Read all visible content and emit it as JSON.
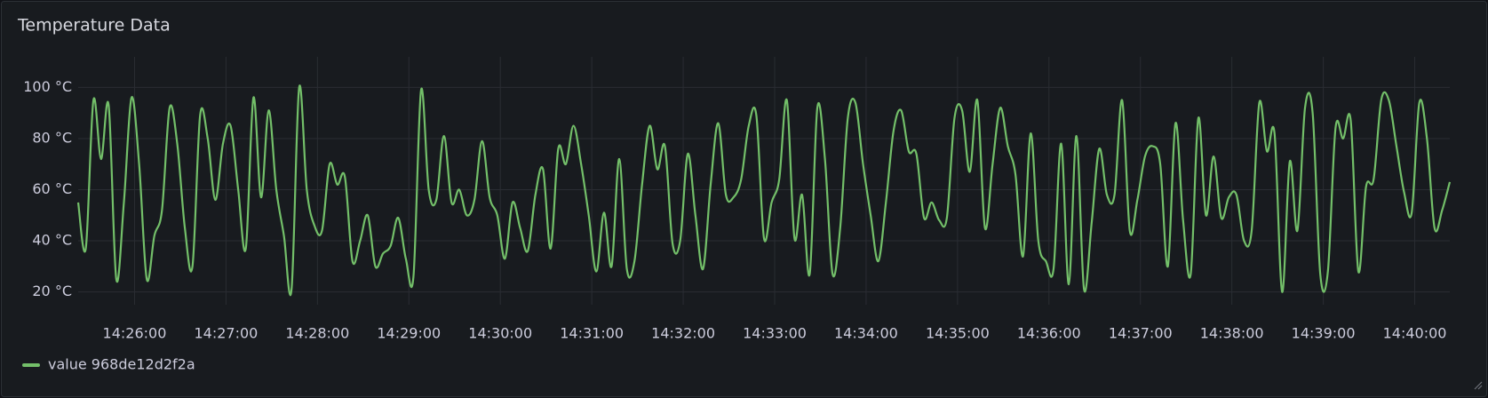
{
  "chart_data": {
    "type": "line",
    "title": "Temperature Data",
    "xlim": [
      "14:25:23",
      "14:40:23"
    ],
    "xticks": [
      "14:26:00",
      "14:27:00",
      "14:28:00",
      "14:29:00",
      "14:30:00",
      "14:31:00",
      "14:32:00",
      "14:33:00",
      "14:34:00",
      "14:35:00",
      "14:36:00",
      "14:37:00",
      "14:38:00",
      "14:39:00",
      "14:40:00"
    ],
    "ylim": [
      15,
      105
    ],
    "yticks": [
      {
        "value": 20,
        "label": "20 °C"
      },
      {
        "value": 40,
        "label": "40 °C"
      },
      {
        "value": 60,
        "label": "60 °C"
      },
      {
        "value": 80,
        "label": "80 °C"
      },
      {
        "value": 100,
        "label": "100 °C"
      }
    ],
    "grid": true,
    "legend": "bottom-left",
    "x": [
      "14:25:23",
      "14:25:28",
      "14:25:33",
      "14:25:38",
      "14:25:43",
      "14:25:48",
      "14:25:53",
      "14:25:58",
      "14:26:03",
      "14:26:08",
      "14:26:13",
      "14:26:18",
      "14:26:23",
      "14:26:28",
      "14:26:33",
      "14:26:38",
      "14:26:43",
      "14:26:48",
      "14:26:53",
      "14:26:58",
      "14:27:03",
      "14:27:08",
      "14:27:13",
      "14:27:18",
      "14:27:23",
      "14:27:28",
      "14:27:33",
      "14:27:38",
      "14:27:43",
      "14:27:48",
      "14:27:53",
      "14:27:58",
      "14:28:03",
      "14:28:08",
      "14:28:13",
      "14:28:18",
      "14:28:23",
      "14:28:28",
      "14:28:33",
      "14:28:38",
      "14:28:43",
      "14:28:48",
      "14:28:53",
      "14:28:58",
      "14:29:03",
      "14:29:08",
      "14:29:13",
      "14:29:18",
      "14:29:23",
      "14:29:28",
      "14:29:33",
      "14:29:38",
      "14:29:43",
      "14:29:48",
      "14:29:53",
      "14:29:58",
      "14:30:03",
      "14:30:08",
      "14:30:13",
      "14:30:18",
      "14:30:23",
      "14:30:28",
      "14:30:33",
      "14:30:38",
      "14:30:43",
      "14:30:48",
      "14:30:53",
      "14:30:58",
      "14:31:03",
      "14:31:08",
      "14:31:13",
      "14:31:18",
      "14:31:23",
      "14:31:28",
      "14:31:33",
      "14:31:38",
      "14:31:43",
      "14:31:48",
      "14:31:53",
      "14:31:58",
      "14:32:03",
      "14:32:08",
      "14:32:13",
      "14:32:18",
      "14:32:23",
      "14:32:28",
      "14:32:33",
      "14:32:38",
      "14:32:43",
      "14:32:48",
      "14:32:53",
      "14:32:58",
      "14:33:03",
      "14:33:08",
      "14:33:13",
      "14:33:18",
      "14:33:23",
      "14:33:28",
      "14:33:33",
      "14:33:38",
      "14:33:43",
      "14:33:48",
      "14:33:53",
      "14:33:58",
      "14:34:03",
      "14:34:08",
      "14:34:13",
      "14:34:18",
      "14:34:23",
      "14:34:28",
      "14:34:33",
      "14:34:38",
      "14:34:43",
      "14:34:48",
      "14:34:53",
      "14:34:58",
      "14:35:03",
      "14:35:08",
      "14:35:13",
      "14:35:18",
      "14:35:23",
      "14:35:28",
      "14:35:33",
      "14:35:38",
      "14:35:43",
      "14:35:48",
      "14:35:53",
      "14:35:58",
      "14:36:03",
      "14:36:08",
      "14:36:13",
      "14:36:18",
      "14:36:23",
      "14:36:28",
      "14:36:33",
      "14:36:38",
      "14:36:43",
      "14:36:48",
      "14:36:53",
      "14:36:58",
      "14:37:03",
      "14:37:08",
      "14:37:13",
      "14:37:18",
      "14:37:23",
      "14:37:28",
      "14:37:33",
      "14:37:38",
      "14:37:43",
      "14:37:48",
      "14:37:53",
      "14:37:58",
      "14:38:03",
      "14:38:08",
      "14:38:13",
      "14:38:18",
      "14:38:23",
      "14:38:28",
      "14:38:33",
      "14:38:38",
      "14:38:43",
      "14:38:48",
      "14:38:53",
      "14:38:58",
      "14:39:03",
      "14:39:08",
      "14:39:13",
      "14:39:18",
      "14:39:23",
      "14:39:28",
      "14:39:33",
      "14:39:38",
      "14:39:43",
      "14:39:48",
      "14:39:53",
      "14:39:58",
      "14:40:03",
      "14:40:08",
      "14:40:13",
      "14:40:18",
      "14:40:23"
    ],
    "series": [
      {
        "name": "value 968de12d2f2a",
        "color": "#73bf69",
        "values": [
          55,
          37,
          95,
          72,
          93,
          25,
          55,
          96,
          70,
          25,
          42,
          52,
          92,
          78,
          45,
          30,
          89,
          80,
          56,
          78,
          85,
          60,
          37,
          96,
          57,
          91,
          60,
          42,
          21,
          100,
          60,
          46,
          44,
          70,
          62,
          65,
          32,
          40,
          50,
          30,
          35,
          38,
          49,
          33,
          26,
          99,
          60,
          56,
          81,
          55,
          60,
          50,
          56,
          79,
          57,
          50,
          33,
          55,
          45,
          36,
          58,
          68,
          37,
          76,
          70,
          85,
          70,
          50,
          28,
          51,
          30,
          72,
          29,
          32,
          62,
          85,
          68,
          77,
          39,
          40,
          74,
          50,
          29,
          62,
          86,
          58,
          57,
          64,
          85,
          89,
          41,
          55,
          64,
          95,
          41,
          58,
          27,
          92,
          72,
          27,
          45,
          88,
          94,
          70,
          50,
          32,
          55,
          83,
          91,
          75,
          74,
          49,
          55,
          48,
          49,
          88,
          91,
          67,
          95,
          45,
          70,
          92,
          77,
          66,
          34,
          82,
          40,
          32,
          29,
          78,
          23,
          81,
          21,
          47,
          76,
          58,
          58,
          95,
          44,
          56,
          73,
          77,
          70,
          30,
          86,
          48,
          27,
          88,
          50,
          73,
          49,
          57,
          58,
          40,
          44,
          94,
          75,
          82,
          20,
          71,
          44,
          92,
          90,
          27,
          28,
          84,
          80,
          87,
          28,
          61,
          64,
          95,
          95,
          77,
          59,
          51,
          94,
          80,
          45,
          52,
          63
        ]
      }
    ]
  }
}
